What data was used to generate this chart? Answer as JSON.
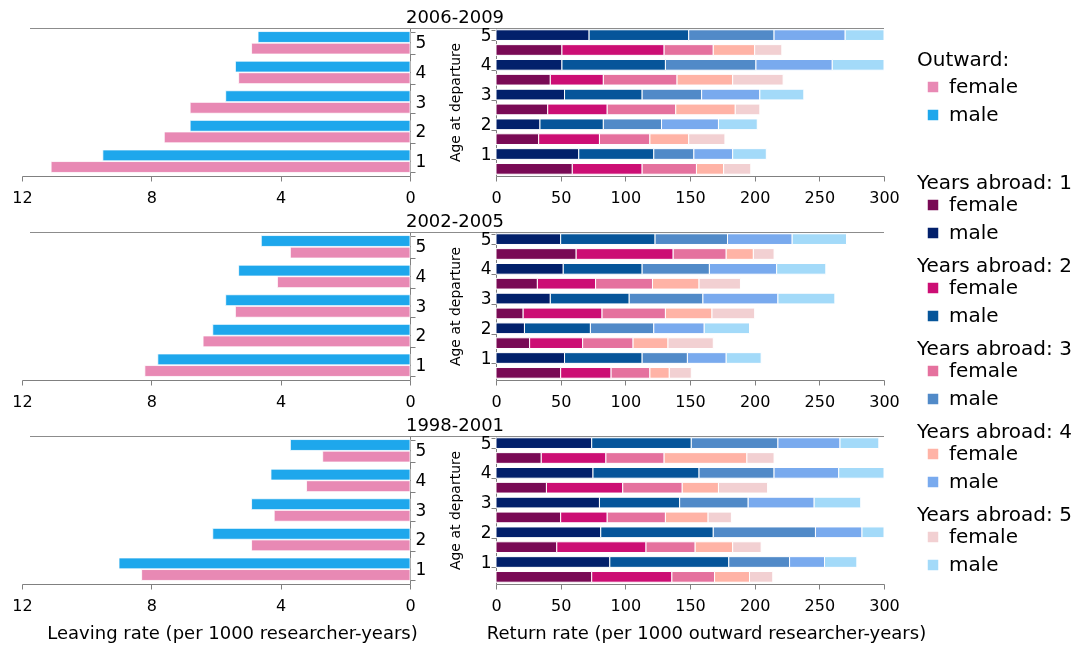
{
  "chart_data": [
    {
      "type": "bar",
      "orientation": "horizontal",
      "title": "2006-2009",
      "categories": [
        "5",
        "4",
        "3",
        "2",
        "1"
      ],
      "series": [
        {
          "name": "female",
          "color": "#e889b4",
          "values": [
            4.9,
            5.3,
            6.8,
            7.6,
            11.1
          ]
        },
        {
          "name": "male",
          "color": "#1ea7ec",
          "values": [
            4.7,
            5.4,
            5.7,
            6.8,
            9.5
          ]
        }
      ],
      "xlim": [
        12,
        0
      ],
      "xticks": [
        12,
        8,
        4,
        0
      ],
      "legend": "right",
      "legend_title": "Outward:"
    },
    {
      "type": "bar",
      "orientation": "horizontal",
      "stacked": true,
      "ylabel": "Age at departure",
      "categories": [
        "5",
        null,
        "4",
        null,
        "3",
        null,
        "2",
        null,
        "1",
        null
      ],
      "series": [
        {
          "name": "female",
          "color": "#790a55",
          "values": [
            null,
            51,
            null,
            42,
            null,
            40,
            null,
            33,
            null,
            59
          ]
        },
        {
          "name": "male",
          "color": "#02206b",
          "values": [
            72,
            null,
            51,
            null,
            53,
            null,
            34,
            null,
            64,
            null
          ]
        },
        {
          "name": "female",
          "color": "#cc0e74",
          "values": [
            null,
            79,
            null,
            41,
            null,
            46,
            null,
            47,
            null,
            54
          ]
        },
        {
          "name": "male",
          "color": "#06559a",
          "values": [
            77,
            null,
            80,
            null,
            60,
            null,
            49,
            null,
            58,
            null
          ]
        },
        {
          "name": "female",
          "color": "#e5719e",
          "values": [
            null,
            38,
            null,
            57,
            null,
            53,
            null,
            39,
            null,
            42
          ]
        },
        {
          "name": "male",
          "color": "#518ac8",
          "values": [
            66,
            null,
            70,
            null,
            46,
            null,
            45,
            null,
            31,
            null
          ]
        },
        {
          "name": "female",
          "color": "#ffb3a6",
          "values": [
            null,
            32,
            null,
            43,
            null,
            46,
            null,
            30,
            null,
            21
          ]
        },
        {
          "name": "male",
          "color": "#79aaee",
          "values": [
            55,
            null,
            59,
            null,
            45,
            null,
            44,
            null,
            30,
            null
          ]
        },
        {
          "name": "female",
          "color": "#f2d0d2",
          "values": [
            null,
            21,
            null,
            39,
            null,
            19,
            null,
            28,
            null,
            21
          ]
        },
        {
          "name": "male",
          "color": "#a3daf9",
          "values": [
            30,
            null,
            40,
            null,
            34,
            null,
            30,
            null,
            26,
            null
          ]
        }
      ],
      "xlim": [
        0,
        300
      ],
      "xticks": [
        0,
        50,
        100,
        150,
        200,
        250,
        300
      ],
      "legend": "right",
      "annotations": [
        "Years abroad: 1",
        "Years abroad: 2",
        "Years abroad: 3",
        "Years abroad: 4",
        "Years abroad: 5"
      ]
    },
    {
      "type": "bar",
      "orientation": "horizontal",
      "title": "2002-2005",
      "categories": [
        "5",
        "4",
        "3",
        "2",
        "1"
      ],
      "series": [
        {
          "color": "#e889b4",
          "values": [
            3.7,
            4.1,
            5.4,
            6.4,
            8.2
          ]
        },
        {
          "color": "#1ea7ec",
          "values": [
            4.6,
            5.3,
            5.7,
            6.1,
            7.8
          ]
        }
      ],
      "xlim": [
        12,
        0
      ],
      "xticks": [
        12,
        8,
        4,
        0
      ]
    },
    {
      "type": "bar",
      "orientation": "horizontal",
      "stacked": true,
      "ylabel": "Age at departure",
      "categories": [
        "5",
        null,
        "4",
        null,
        "3",
        null,
        "2",
        null,
        "1",
        null
      ],
      "series": [
        {
          "color": "#790a55",
          "values": [
            null,
            62,
            null,
            32,
            null,
            21,
            null,
            26,
            null,
            50
          ]
        },
        {
          "color": "#02206b",
          "values": [
            50,
            null,
            52,
            null,
            42,
            null,
            22,
            null,
            53,
            null
          ]
        },
        {
          "color": "#cc0e74",
          "values": [
            null,
            75,
            null,
            45,
            null,
            61,
            null,
            41,
            null,
            39
          ]
        },
        {
          "color": "#06559a",
          "values": [
            73,
            null,
            61,
            null,
            61,
            null,
            51,
            null,
            60,
            null
          ]
        },
        {
          "color": "#e5719e",
          "values": [
            null,
            41,
            null,
            44,
            null,
            49,
            null,
            39,
            null,
            30
          ]
        },
        {
          "color": "#518ac8",
          "values": [
            56,
            null,
            52,
            null,
            57,
            null,
            49,
            null,
            35,
            null
          ]
        },
        {
          "color": "#ffb3a6",
          "values": [
            null,
            21,
            null,
            36,
            null,
            36,
            null,
            27,
            null,
            15
          ]
        },
        {
          "color": "#79aaee",
          "values": [
            50,
            null,
            52,
            null,
            58,
            null,
            39,
            null,
            30,
            null
          ]
        },
        {
          "color": "#f2d0d2",
          "values": [
            null,
            16,
            null,
            32,
            null,
            33,
            null,
            35,
            null,
            17
          ]
        },
        {
          "color": "#a3daf9",
          "values": [
            42,
            null,
            38,
            null,
            44,
            null,
            35,
            null,
            27,
            null
          ]
        }
      ],
      "xlim": [
        0,
        300
      ],
      "xticks": [
        0,
        50,
        100,
        150,
        200,
        250,
        300
      ]
    },
    {
      "type": "bar",
      "orientation": "horizontal",
      "title": "1998-2001",
      "xlabel": "Leaving rate (per 1000 researcher-years)",
      "categories": [
        "5",
        "4",
        "3",
        "2",
        "1"
      ],
      "series": [
        {
          "color": "#e889b4",
          "values": [
            2.7,
            3.2,
            4.2,
            4.9,
            8.3
          ]
        },
        {
          "color": "#1ea7ec",
          "values": [
            3.7,
            4.3,
            4.9,
            6.1,
            9.0
          ]
        }
      ],
      "xlim": [
        12,
        0
      ],
      "xticks": [
        12,
        8,
        4,
        0
      ]
    },
    {
      "type": "bar",
      "orientation": "horizontal",
      "stacked": true,
      "xlabel": "Return rate (per 1000 outward researcher-years)",
      "ylabel": "Age at departure",
      "categories": [
        "5",
        null,
        "4",
        null,
        "3",
        null,
        "2",
        null,
        "1",
        null
      ],
      "series": [
        {
          "color": "#790a55",
          "values": [
            null,
            35,
            null,
            39,
            null,
            50,
            null,
            47,
            null,
            74
          ]
        },
        {
          "color": "#02206b",
          "values": [
            74,
            null,
            75,
            null,
            80,
            null,
            81,
            null,
            88,
            null
          ]
        },
        {
          "color": "#cc0e74",
          "values": [
            null,
            50,
            null,
            59,
            null,
            36,
            null,
            69,
            null,
            62
          ]
        },
        {
          "color": "#06559a",
          "values": [
            77,
            null,
            82,
            null,
            62,
            null,
            87,
            null,
            92,
            null
          ]
        },
        {
          "color": "#e5719e",
          "values": [
            null,
            45,
            null,
            46,
            null,
            45,
            null,
            38,
            null,
            33
          ]
        },
        {
          "color": "#518ac8",
          "values": [
            67,
            null,
            58,
            null,
            53,
            null,
            79,
            null,
            47,
            null
          ]
        },
        {
          "color": "#ffb3a6",
          "values": [
            null,
            64,
            null,
            28,
            null,
            33,
            null,
            29,
            null,
            27
          ]
        },
        {
          "color": "#79aaee",
          "values": [
            48,
            null,
            50,
            null,
            51,
            null,
            36,
            null,
            27,
            null
          ]
        },
        {
          "color": "#f2d0d2",
          "values": [
            null,
            21,
            null,
            38,
            null,
            18,
            null,
            22,
            null,
            18
          ]
        },
        {
          "color": "#a3daf9",
          "values": [
            30,
            null,
            35,
            null,
            36,
            null,
            17,
            null,
            25,
            null
          ]
        }
      ],
      "xlim": [
        0,
        300
      ],
      "xticks": [
        0,
        50,
        100,
        150,
        200,
        250,
        300
      ]
    }
  ]
}
